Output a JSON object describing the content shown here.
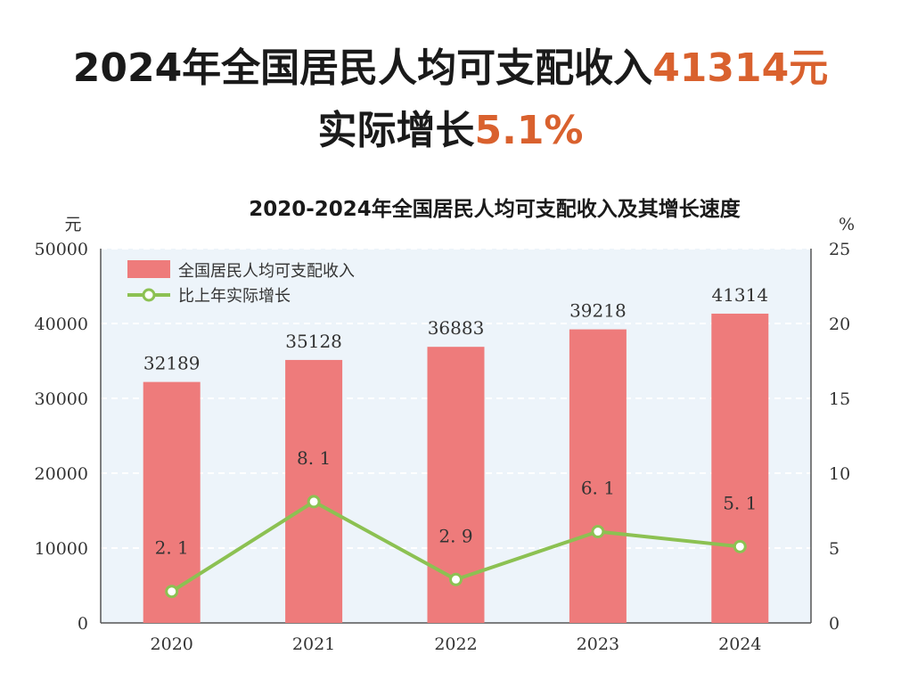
{
  "headline": {
    "line1_prefix": "2024年全国居民人均可支配收入",
    "line1_value": "41314元",
    "line2_prefix": "实际增长",
    "line2_value": "5.1%"
  },
  "colors": {
    "accent": "#d9612e",
    "bar": "#ee7b7b",
    "line": "#8cc152",
    "plot_bg": "#edf4fa",
    "grid": "#ffffff"
  },
  "chart_data": {
    "type": "bar",
    "title": "2020-2024年全国居民人均可支配收入及其增长速度",
    "categories": [
      "2020",
      "2021",
      "2022",
      "2023",
      "2024"
    ],
    "y_left_unit": "元",
    "y_right_unit": "%",
    "y_left_ticks": [
      "0",
      "10000",
      "20000",
      "30000",
      "40000",
      "50000"
    ],
    "y_right_ticks": [
      "0",
      "5",
      "10",
      "15",
      "20",
      "25"
    ],
    "ylim_left": [
      0,
      50000
    ],
    "ylim_right": [
      0,
      25
    ],
    "grid": true,
    "legend_position": "top-left",
    "series": [
      {
        "name": "全国居民人均可支配收入",
        "type": "bar",
        "axis": "left",
        "values": [
          32189,
          35128,
          36883,
          39218,
          41314
        ],
        "labels": [
          "32189",
          "35128",
          "36883",
          "39218",
          "41314"
        ]
      },
      {
        "name": "比上年实际增长",
        "type": "line",
        "axis": "right",
        "values": [
          2.1,
          8.1,
          2.9,
          6.1,
          5.1
        ],
        "labels": [
          "2. 1",
          "8. 1",
          "2. 9",
          "6. 1",
          "5. 1"
        ]
      }
    ]
  }
}
